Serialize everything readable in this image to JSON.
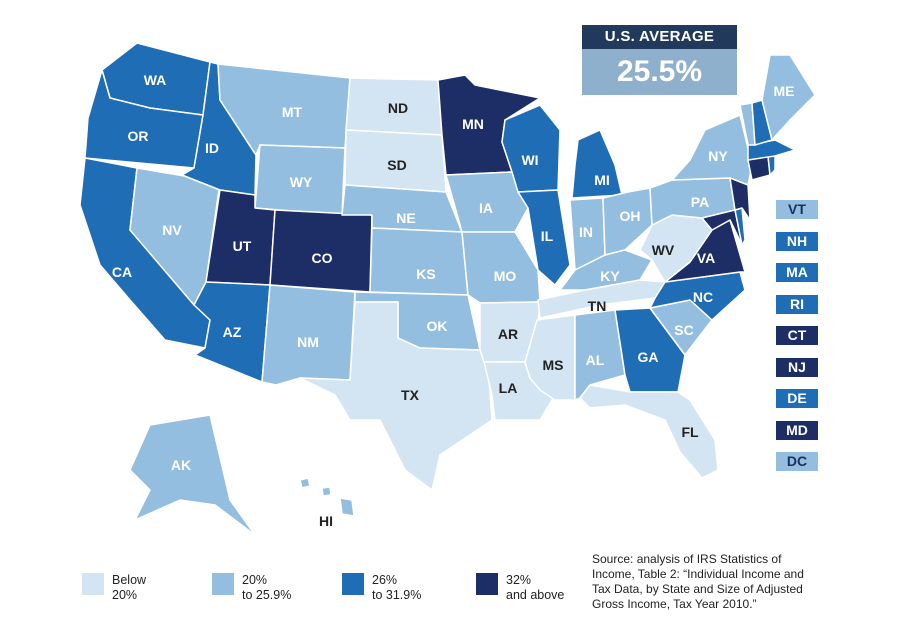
{
  "average": {
    "label": "U.S. AVERAGE",
    "value": "25.5%"
  },
  "colors": {
    "below_20": "#d3e4f2",
    "20_to_25_9": "#93bedf",
    "26_to_31_9": "#1f6db4",
    "32_and_above": "#1d2d66",
    "border": "#ffffff"
  },
  "legend": [
    {
      "text": "Below\n20%",
      "color": "#d3e4f2"
    },
    {
      "text": "20%\nto 25.9%",
      "color": "#93bedf"
    },
    {
      "text": "26%\nto 31.9%",
      "color": "#1f6db4"
    },
    {
      "text": "32%\nand above",
      "color": "#1d2d66"
    }
  ],
  "small_states": [
    {
      "code": "VT",
      "color": "#93bedf"
    },
    {
      "code": "NH",
      "color": "#1f6db4"
    },
    {
      "code": "MA",
      "color": "#1f6db4"
    },
    {
      "code": "RI",
      "color": "#1f6db4"
    },
    {
      "code": "CT",
      "color": "#1d2d66"
    },
    {
      "code": "NJ",
      "color": "#1d2d66"
    },
    {
      "code": "DE",
      "color": "#1f6db4"
    },
    {
      "code": "MD",
      "color": "#1d2d66"
    },
    {
      "code": "DC",
      "color": "#93bedf"
    }
  ],
  "state_labels": {
    "WA": "WA",
    "OR": "OR",
    "CA": "CA",
    "ID": "ID",
    "NV": "NV",
    "MT": "MT",
    "WY": "WY",
    "UT": "UT",
    "CO": "CO",
    "AZ": "AZ",
    "NM": "NM",
    "ND": "ND",
    "SD": "SD",
    "NE": "NE",
    "KS": "KS",
    "OK": "OK",
    "TX": "TX",
    "MN": "MN",
    "IA": "IA",
    "MO": "MO",
    "AR": "AR",
    "LA": "LA",
    "WI": "WI",
    "IL": "IL",
    "MI": "MI",
    "IN": "IN",
    "OH": "OH",
    "KY": "KY",
    "TN": "TN",
    "MS": "MS",
    "AL": "AL",
    "GA": "GA",
    "FL": "FL",
    "SC": "SC",
    "NC": "NC",
    "VA": "VA",
    "WV": "WV",
    "PA": "PA",
    "NY": "NY",
    "ME": "ME",
    "AK": "AK",
    "HI": "HI"
  },
  "source": "Source: analysis of IRS Statistics of Income, Table 2: “Individual Income and Tax Data, by State and Size of Adjusted Gross Income, Tax Year 2010.”"
}
